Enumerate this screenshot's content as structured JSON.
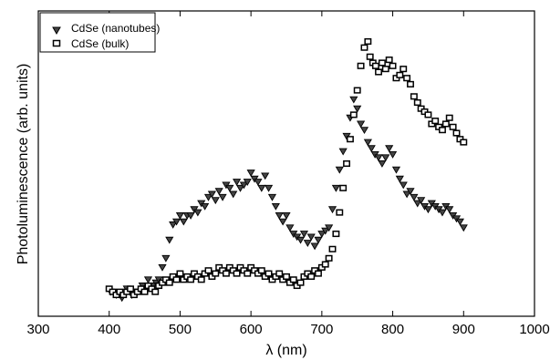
{
  "chart_data": {
    "type": "scatter",
    "title": "",
    "xlabel": "λ (nm)",
    "ylabel": "Photoluminescence (arb. units)",
    "xlim": [
      300,
      1000
    ],
    "ylim": [
      0,
      1
    ],
    "xticks": [
      300,
      400,
      500,
      600,
      700,
      800,
      900,
      1000
    ],
    "x_tick_labels": [
      "300",
      "400",
      "500",
      "600",
      "700",
      "800",
      "900",
      "1000"
    ],
    "y_ticks_shown": false,
    "grid": false,
    "legend_position": "top-left",
    "series": [
      {
        "name": "CdSe (nanotubes)",
        "marker": "triangle-down",
        "color": "#000000",
        "points": [
          [
            402,
            0.08
          ],
          [
            410,
            0.07
          ],
          [
            418,
            0.06
          ],
          [
            425,
            0.09
          ],
          [
            432,
            0.07
          ],
          [
            440,
            0.08
          ],
          [
            447,
            0.1
          ],
          [
            455,
            0.12
          ],
          [
            462,
            0.1
          ],
          [
            466,
            0.11
          ],
          [
            470,
            0.12
          ],
          [
            475,
            0.16
          ],
          [
            480,
            0.19
          ],
          [
            485,
            0.25
          ],
          [
            490,
            0.3
          ],
          [
            495,
            0.31
          ],
          [
            500,
            0.33
          ],
          [
            505,
            0.31
          ],
          [
            510,
            0.33
          ],
          [
            515,
            0.33
          ],
          [
            520,
            0.35
          ],
          [
            525,
            0.34
          ],
          [
            530,
            0.37
          ],
          [
            535,
            0.36
          ],
          [
            540,
            0.39
          ],
          [
            545,
            0.4
          ],
          [
            550,
            0.38
          ],
          [
            555,
            0.41
          ],
          [
            560,
            0.39
          ],
          [
            565,
            0.43
          ],
          [
            570,
            0.42
          ],
          [
            575,
            0.4
          ],
          [
            580,
            0.44
          ],
          [
            585,
            0.42
          ],
          [
            590,
            0.43
          ],
          [
            595,
            0.44
          ],
          [
            600,
            0.47
          ],
          [
            605,
            0.45
          ],
          [
            610,
            0.44
          ],
          [
            615,
            0.42
          ],
          [
            620,
            0.46
          ],
          [
            625,
            0.42
          ],
          [
            630,
            0.39
          ],
          [
            635,
            0.36
          ],
          [
            640,
            0.33
          ],
          [
            645,
            0.31
          ],
          [
            650,
            0.33
          ],
          [
            655,
            0.29
          ],
          [
            660,
            0.27
          ],
          [
            665,
            0.26
          ],
          [
            670,
            0.25
          ],
          [
            675,
            0.27
          ],
          [
            680,
            0.24
          ],
          [
            685,
            0.26
          ],
          [
            690,
            0.23
          ],
          [
            695,
            0.25
          ],
          [
            700,
            0.27
          ],
          [
            705,
            0.28
          ],
          [
            710,
            0.29
          ],
          [
            715,
            0.35
          ],
          [
            720,
            0.42
          ],
          [
            725,
            0.48
          ],
          [
            730,
            0.54
          ],
          [
            735,
            0.59
          ],
          [
            740,
            0.65
          ],
          [
            745,
            0.71
          ],
          [
            750,
            0.68
          ],
          [
            755,
            0.63
          ],
          [
            760,
            0.61
          ],
          [
            765,
            0.57
          ],
          [
            770,
            0.55
          ],
          [
            775,
            0.53
          ],
          [
            780,
            0.52
          ],
          [
            785,
            0.5
          ],
          [
            790,
            0.52
          ],
          [
            795,
            0.55
          ],
          [
            800,
            0.53
          ],
          [
            805,
            0.48
          ],
          [
            810,
            0.45
          ],
          [
            815,
            0.43
          ],
          [
            820,
            0.4
          ],
          [
            825,
            0.41
          ],
          [
            830,
            0.39
          ],
          [
            835,
            0.37
          ],
          [
            840,
            0.38
          ],
          [
            845,
            0.36
          ],
          [
            850,
            0.35
          ],
          [
            855,
            0.37
          ],
          [
            860,
            0.36
          ],
          [
            865,
            0.35
          ],
          [
            870,
            0.34
          ],
          [
            875,
            0.36
          ],
          [
            880,
            0.35
          ],
          [
            885,
            0.33
          ],
          [
            890,
            0.32
          ],
          [
            895,
            0.31
          ],
          [
            900,
            0.29
          ]
        ]
      },
      {
        "name": "CdSe (bulk)",
        "marker": "open-square",
        "color": "#000000",
        "points": [
          [
            400,
            0.09
          ],
          [
            405,
            0.08
          ],
          [
            410,
            0.07
          ],
          [
            415,
            0.08
          ],
          [
            420,
            0.07
          ],
          [
            425,
            0.08
          ],
          [
            430,
            0.09
          ],
          [
            435,
            0.07
          ],
          [
            440,
            0.08
          ],
          [
            445,
            0.09
          ],
          [
            450,
            0.08
          ],
          [
            455,
            0.1
          ],
          [
            460,
            0.09
          ],
          [
            465,
            0.08
          ],
          [
            470,
            0.1
          ],
          [
            475,
            0.11
          ],
          [
            480,
            0.12
          ],
          [
            485,
            0.11
          ],
          [
            490,
            0.13
          ],
          [
            495,
            0.12
          ],
          [
            500,
            0.14
          ],
          [
            505,
            0.12
          ],
          [
            510,
            0.13
          ],
          [
            515,
            0.12
          ],
          [
            520,
            0.14
          ],
          [
            525,
            0.13
          ],
          [
            530,
            0.12
          ],
          [
            535,
            0.14
          ],
          [
            540,
            0.15
          ],
          [
            545,
            0.13
          ],
          [
            550,
            0.14
          ],
          [
            555,
            0.16
          ],
          [
            560,
            0.15
          ],
          [
            565,
            0.14
          ],
          [
            570,
            0.16
          ],
          [
            575,
            0.15
          ],
          [
            580,
            0.14
          ],
          [
            585,
            0.16
          ],
          [
            590,
            0.15
          ],
          [
            595,
            0.14
          ],
          [
            600,
            0.16
          ],
          [
            605,
            0.15
          ],
          [
            610,
            0.14
          ],
          [
            615,
            0.15
          ],
          [
            620,
            0.13
          ],
          [
            625,
            0.14
          ],
          [
            630,
            0.12
          ],
          [
            635,
            0.13
          ],
          [
            640,
            0.14
          ],
          [
            645,
            0.12
          ],
          [
            650,
            0.13
          ],
          [
            655,
            0.11
          ],
          [
            660,
            0.12
          ],
          [
            665,
            0.1
          ],
          [
            670,
            0.11
          ],
          [
            675,
            0.13
          ],
          [
            680,
            0.14
          ],
          [
            685,
            0.13
          ],
          [
            690,
            0.15
          ],
          [
            695,
            0.14
          ],
          [
            700,
            0.16
          ],
          [
            705,
            0.17
          ],
          [
            710,
            0.19
          ],
          [
            715,
            0.22
          ],
          [
            720,
            0.27
          ],
          [
            725,
            0.34
          ],
          [
            730,
            0.42
          ],
          [
            735,
            0.5
          ],
          [
            740,
            0.58
          ],
          [
            745,
            0.66
          ],
          [
            750,
            0.74
          ],
          [
            755,
            0.82
          ],
          [
            760,
            0.88
          ],
          [
            765,
            0.9
          ],
          [
            768,
            0.85
          ],
          [
            772,
            0.83
          ],
          [
            776,
            0.82
          ],
          [
            780,
            0.8
          ],
          [
            785,
            0.83
          ],
          [
            790,
            0.81
          ],
          [
            795,
            0.84
          ],
          [
            800,
            0.82
          ],
          [
            805,
            0.78
          ],
          [
            810,
            0.79
          ],
          [
            815,
            0.81
          ],
          [
            820,
            0.78
          ],
          [
            825,
            0.76
          ],
          [
            830,
            0.72
          ],
          [
            835,
            0.7
          ],
          [
            840,
            0.68
          ],
          [
            845,
            0.67
          ],
          [
            850,
            0.66
          ],
          [
            855,
            0.63
          ],
          [
            860,
            0.64
          ],
          [
            865,
            0.62
          ],
          [
            870,
            0.61
          ],
          [
            875,
            0.63
          ],
          [
            880,
            0.65
          ],
          [
            885,
            0.62
          ],
          [
            890,
            0.6
          ],
          [
            895,
            0.58
          ],
          [
            900,
            0.57
          ]
        ]
      }
    ]
  }
}
